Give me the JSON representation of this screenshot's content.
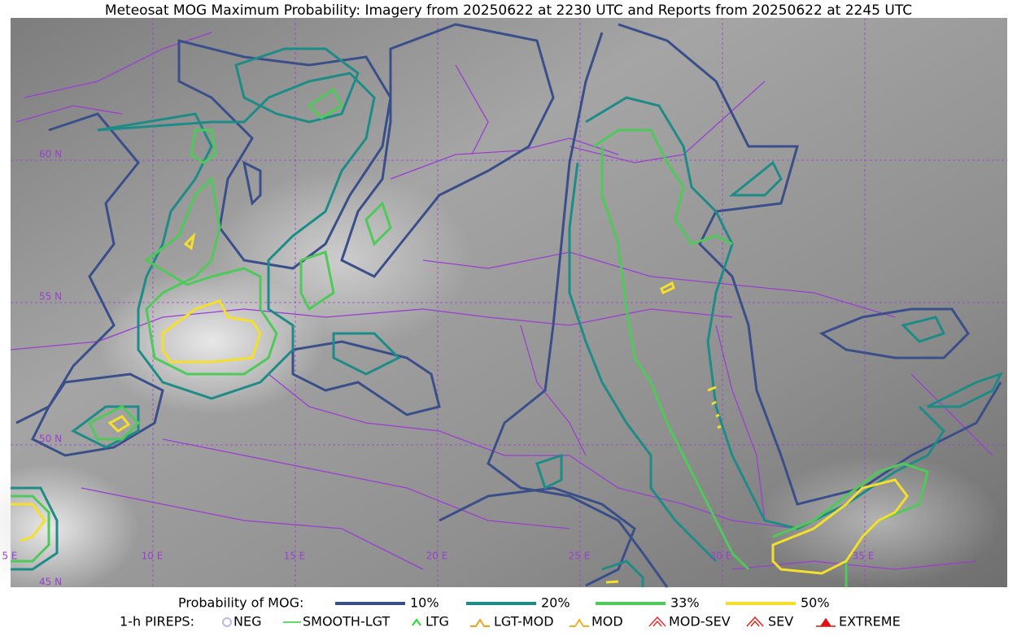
{
  "title": "Meteosat MOG Maximum Probability: Imagery from 20250622 at 2230 UTC and Reports from 20250622 at 2245 UTC",
  "map": {
    "lat_labels": [
      "60 N",
      "55 N",
      "50 N",
      "45 N"
    ],
    "lon_labels": [
      "5 E",
      "10 E",
      "15 E",
      "20 E",
      "25 E",
      "30 E",
      "35 E"
    ]
  },
  "legend": {
    "probability": {
      "label": "Probability of MOG:",
      "items": [
        {
          "label": "10%",
          "color": "#3a4f8a"
        },
        {
          "label": "20%",
          "color": "#1e8c86"
        },
        {
          "label": "33%",
          "color": "#4ec95a"
        },
        {
          "label": "50%",
          "color": "#f5df2a"
        }
      ]
    },
    "pireps": {
      "label": "1-h PIREPS:",
      "items": [
        {
          "label": "NEG",
          "color": "#b9b9f0"
        },
        {
          "label": "SMOOTH-LGT",
          "color": "#33cc33"
        },
        {
          "label": "LTG",
          "color": "#22dd22"
        },
        {
          "label": "LGT-MOD",
          "color": "#f0a020"
        },
        {
          "label": "MOD",
          "color": "#f5b020"
        },
        {
          "label": "MOD-SEV",
          "color": "#e83030"
        },
        {
          "label": "SEV",
          "color": "#e82020"
        },
        {
          "label": "EXTREME",
          "color": "#e01010"
        }
      ]
    }
  }
}
